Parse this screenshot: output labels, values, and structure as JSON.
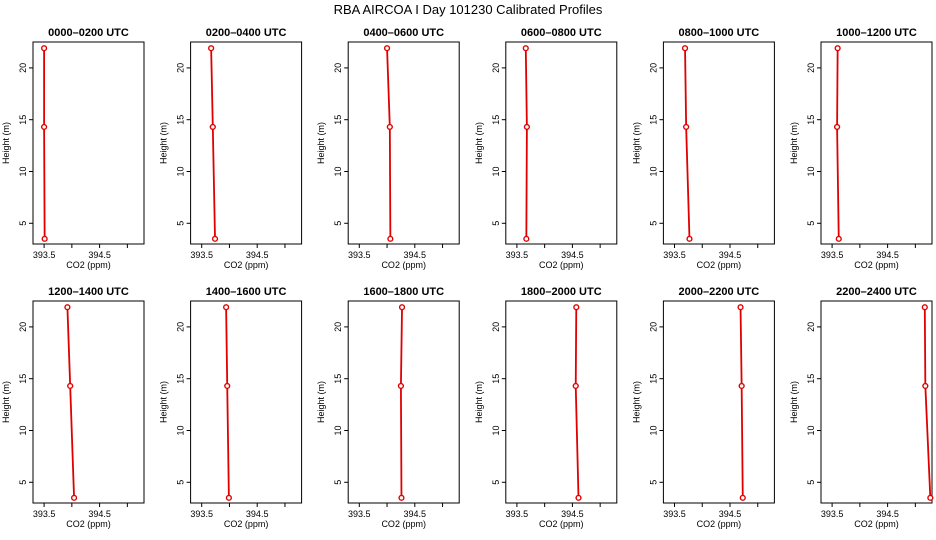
{
  "figure": {
    "title": "RBA AIRCOA I  Day 101230  Calibrated Profiles"
  },
  "chart_data": {
    "type": "line",
    "layout": "small-multiples 2x6",
    "title": "RBA AIRCOA I  Day 101230  Calibrated Profiles",
    "xlabel": "CO2 (ppm)",
    "ylabel": "Height (m)",
    "xlim": [
      393.3,
      395.3
    ],
    "ylim": [
      3,
      22.5
    ],
    "x_ticks": [
      393.5,
      394.0,
      394.5,
      395.0
    ],
    "x_tick_labels": [
      "393.5",
      "",
      "394.5",
      ""
    ],
    "y_ticks": [
      5,
      10,
      15,
      20
    ],
    "y_tick_labels": [
      "5",
      "10",
      "15",
      "20"
    ],
    "panels": [
      {
        "title": "0000–0200 UTC",
        "heights": [
          3.5,
          14.3,
          21.9
        ],
        "values": [
          393.51,
          393.5,
          393.5
        ]
      },
      {
        "title": "0200–0400 UTC",
        "heights": [
          3.5,
          14.3,
          21.9
        ],
        "values": [
          393.74,
          393.7,
          393.67
        ]
      },
      {
        "title": "0400–0600 UTC",
        "heights": [
          3.5,
          14.3,
          21.9
        ],
        "values": [
          394.06,
          394.05,
          394.0
        ]
      },
      {
        "title": "0600–0800 UTC",
        "heights": [
          3.5,
          14.3,
          21.9
        ],
        "values": [
          393.67,
          393.68,
          393.66
        ]
      },
      {
        "title": "0800–1000 UTC",
        "heights": [
          3.5,
          14.3,
          21.9
        ],
        "values": [
          393.77,
          393.71,
          393.69
        ]
      },
      {
        "title": "1000–1200 UTC",
        "heights": [
          3.5,
          14.3,
          21.9
        ],
        "values": [
          393.62,
          393.59,
          393.6
        ]
      },
      {
        "title": "1200–1400 UTC",
        "heights": [
          3.5,
          14.3,
          21.9
        ],
        "values": [
          394.04,
          393.97,
          393.92
        ]
      },
      {
        "title": "1400–1600 UTC",
        "heights": [
          3.5,
          14.3,
          21.9
        ],
        "values": [
          393.99,
          393.96,
          393.94
        ]
      },
      {
        "title": "1600–1800 UTC",
        "heights": [
          3.5,
          14.3,
          21.9
        ],
        "values": [
          394.26,
          394.25,
          394.27
        ]
      },
      {
        "title": "1800–2000 UTC",
        "heights": [
          3.5,
          14.3,
          21.9
        ],
        "values": [
          394.61,
          394.56,
          394.57
        ]
      },
      {
        "title": "2000–2200 UTC",
        "heights": [
          3.5,
          14.3,
          21.9
        ],
        "values": [
          394.73,
          394.71,
          394.69
        ]
      },
      {
        "title": "2200–2400 UTC",
        "heights": [
          3.5,
          14.3,
          21.9
        ],
        "values": [
          395.27,
          395.18,
          395.17
        ]
      }
    ],
    "series_color": "#e00000"
  }
}
